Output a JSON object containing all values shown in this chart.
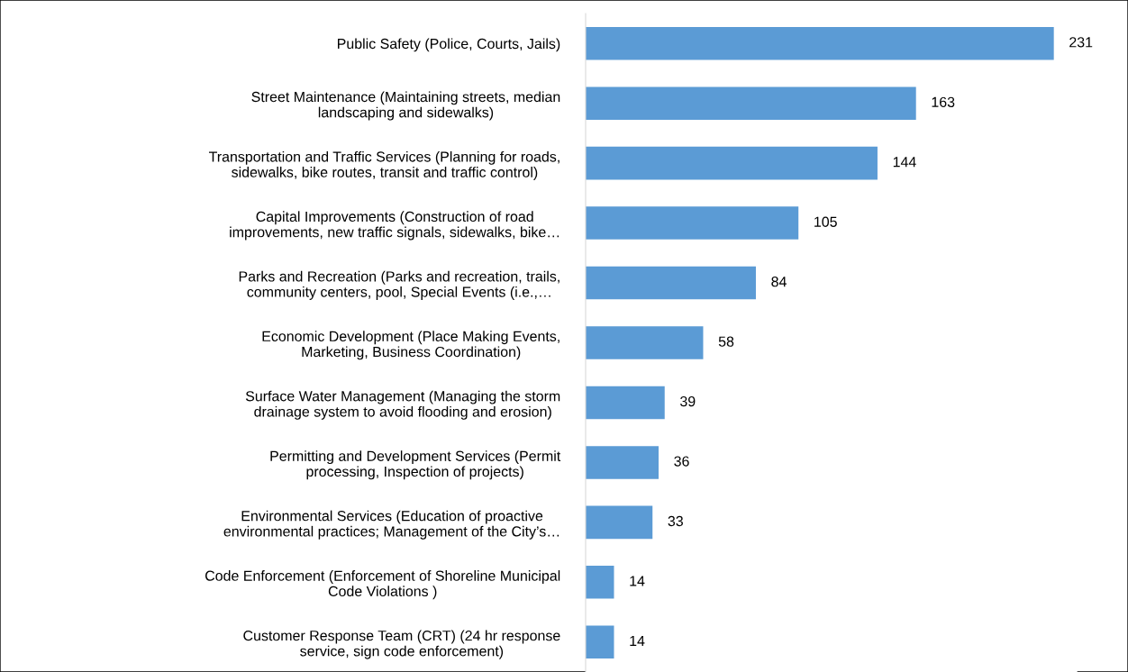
{
  "chart_data": {
    "type": "bar",
    "orientation": "horizontal",
    "data_labels": true,
    "grid": false,
    "legend": false,
    "color": "#5b9bd5",
    "categories": [
      "Public Safety (Police, Courts, Jails)",
      "Street Maintenance (Maintaining streets, median\nlandscaping and sidewalks)",
      "Transportation and Traffic Services (Planning for roads,\nsidewalks, bike routes, transit and traffic control)",
      "Capital Improvements (Construction of road\nimprovements, new traffic signals, sidewalks, bike…",
      "Parks and Recreation (Parks and recreation, trails,\ncommunity centers, pool, Special Events (i.e.,…",
      "Economic Development (Place Making Events,\nMarketing, Business Coordination)",
      "Surface Water Management (Managing the storm\ndrainage system to avoid flooding and erosion)",
      "Permitting and Development Services (Permit\nprocessing, Inspection of projects)",
      "Environmental Services (Education of proactive\nenvironmental practices; Management of the City’s…",
      "Code Enforcement (Enforcement of Shoreline Municipal\nCode Violations )",
      "Customer Response Team (CRT) (24 hr response\nservice, sign code enforcement)"
    ],
    "values": [
      231,
      163,
      144,
      105,
      84,
      58,
      39,
      36,
      33,
      14,
      14
    ]
  }
}
